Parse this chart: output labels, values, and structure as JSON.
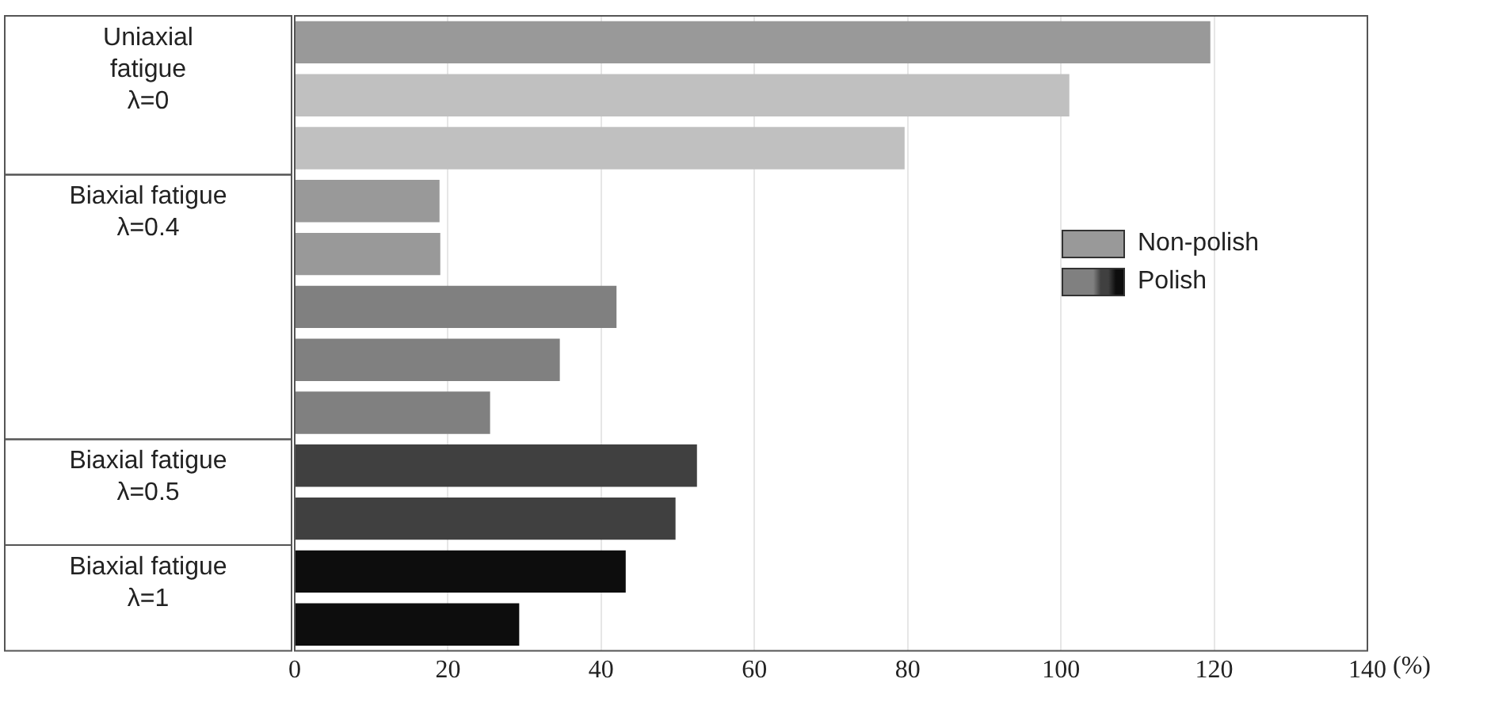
{
  "chart_data": {
    "type": "bar",
    "orientation": "horizontal",
    "xlabel": "(%)",
    "categories": [
      "Uniaxial\nfatigue\nλ=0",
      null,
      null,
      "Biaxial fatigue\nλ=0.4",
      null,
      null,
      null,
      null,
      "Biaxial fatigue\nλ=0.5",
      null,
      "Biaxial fatigue\nλ=1",
      null
    ],
    "series": [
      {
        "name": "Non-polish",
        "color": "#999999",
        "values": [
          119.5,
          null,
          null,
          18.9,
          19,
          null,
          null,
          null,
          null,
          null,
          null,
          null
        ]
      },
      {
        "name": "Polish",
        "colors": [
          "#c0c0c0",
          "#c0c0c0",
          "#c0c0c0",
          "#808080",
          "#808080",
          "#808080",
          "#808080",
          "#808080",
          "#404040",
          "#404040",
          "#0d0d0d",
          "#0d0d0d"
        ],
        "values": [
          null,
          101.1,
          79.6,
          null,
          null,
          42,
          34.6,
          25.5,
          52.5,
          49.7,
          43.2,
          29.3
        ]
      }
    ],
    "stacked": true,
    "xlim": [
      0,
      140
    ],
    "xticks": [
      0,
      20,
      40,
      60,
      80,
      100,
      120,
      140
    ],
    "grid": "x",
    "legend": "right"
  }
}
